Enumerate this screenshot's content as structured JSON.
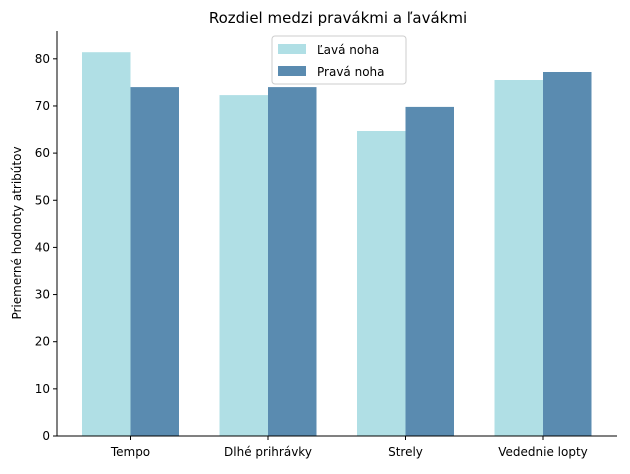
{
  "chart_data": {
    "type": "bar",
    "title": "Rozdiel medzi pravákmi a ľavákmi",
    "xlabel": "",
    "ylabel": "Priemerné hodnoty atribútov",
    "categories": [
      "Tempo",
      "Dlhé prihrávky",
      "Strely",
      "Vedednie lopty"
    ],
    "series": [
      {
        "name": "Ľavá noha",
        "values": [
          81.4,
          72.3,
          64.7,
          75.5
        ],
        "color": "#b0dfe5"
      },
      {
        "name": "Pravá noha",
        "values": [
          74.0,
          74.0,
          69.8,
          77.2
        ],
        "color": "#5a8bb0"
      }
    ],
    "ylim": [
      0,
      85.9
    ],
    "yticks": [
      0,
      10,
      20,
      30,
      40,
      50,
      60,
      70,
      80
    ],
    "grid": false,
    "legend_position": "top-center"
  }
}
